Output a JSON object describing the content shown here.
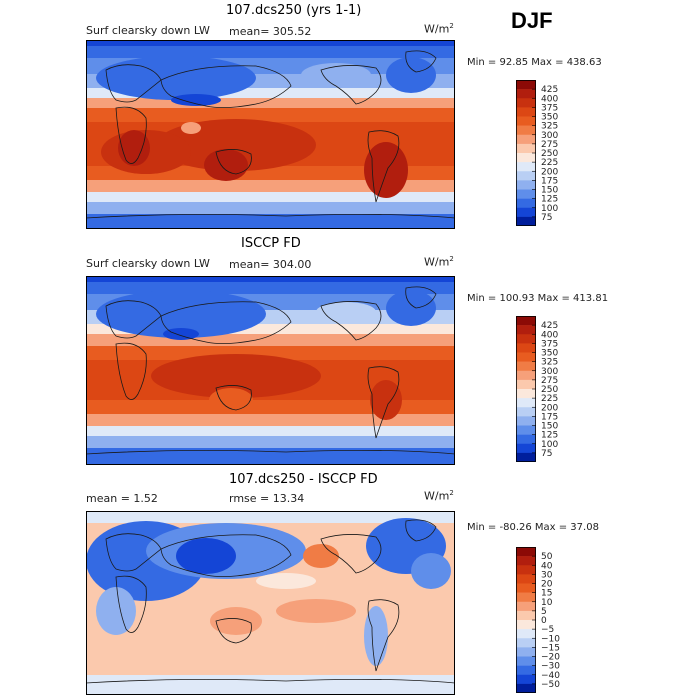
{
  "season": "DJF",
  "panels": [
    {
      "title": "107.dcs250 (yrs 1-1)",
      "variable": "Surf clearsky down LW",
      "stat_text": "mean= 305.52",
      "unit_base": "W/m",
      "unit_exp": "2",
      "minmax": "Min =  92.85 Max = 438.63",
      "colorbar": {
        "labels": [
          "425",
          "400",
          "375",
          "350",
          "325",
          "300",
          "275",
          "250",
          "225",
          "200",
          "175",
          "150",
          "125",
          "100",
          "75"
        ],
        "colors": [
          "#8c0a06",
          "#b11e0e",
          "#c8310f",
          "#dc4714",
          "#e85c20",
          "#f07c45",
          "#f6a07a",
          "#fbc9ad",
          "#fbe8dc",
          "#dfe9f8",
          "#b9cff4",
          "#8fb0ef",
          "#5f8eea",
          "#346ae3",
          "#1445d6",
          "#001e9c"
        ]
      }
    },
    {
      "title": "ISCCP FD",
      "variable": "Surf clearsky down LW",
      "stat_text": "mean= 304.00",
      "unit_base": "W/m",
      "unit_exp": "2",
      "minmax": "Min = 100.93 Max = 413.81",
      "colorbar": {
        "labels": [
          "425",
          "400",
          "375",
          "350",
          "325",
          "300",
          "275",
          "250",
          "225",
          "200",
          "175",
          "150",
          "125",
          "100",
          "75"
        ],
        "colors": [
          "#8c0a06",
          "#b11e0e",
          "#c8310f",
          "#dc4714",
          "#e85c20",
          "#f07c45",
          "#f6a07a",
          "#fbc9ad",
          "#fbe8dc",
          "#dfe9f8",
          "#b9cff4",
          "#8fb0ef",
          "#5f8eea",
          "#346ae3",
          "#1445d6",
          "#001e9c"
        ]
      }
    },
    {
      "title": "107.dcs250 - ISCCP FD",
      "variable": "mean =    1.52",
      "stat_text": "rmse =  13.34",
      "unit_base": "W/m",
      "unit_exp": "2",
      "minmax": "Min = -80.26 Max =  37.08",
      "colorbar": {
        "labels": [
          "50",
          "40",
          "30",
          "20",
          "15",
          "10",
          "5",
          "0",
          "−5",
          "−10",
          "−15",
          "−20",
          "−30",
          "−40",
          "−50"
        ],
        "colors": [
          "#8c0a06",
          "#b11e0e",
          "#c8310f",
          "#dc4714",
          "#e85c20",
          "#f07c45",
          "#f6a07a",
          "#fbc9ad",
          "#fbe8dc",
          "#dfe9f8",
          "#b9cff4",
          "#8fb0ef",
          "#5f8eea",
          "#346ae3",
          "#1445d6",
          "#001e9c"
        ]
      }
    }
  ]
}
